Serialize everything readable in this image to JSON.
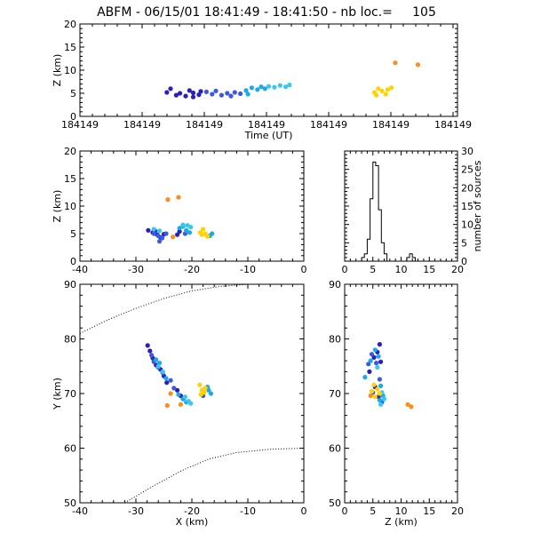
{
  "header": {
    "title": "ABFM - 06/15/01 18:41:49 - 18:41:50 - nb loc.=     105"
  },
  "colors": {
    "navy": "#2b1fb8",
    "blue": "#3b5bdc",
    "sky": "#1ea8e8",
    "cyan": "#36c8f0",
    "yellow": "#ffd200",
    "orange": "#ff8c1a"
  },
  "chart_data": [
    {
      "id": "time-z",
      "type": "scatter",
      "xlabel": "Time (UT)",
      "ylabel": "Z (km)",
      "ylim": [
        0,
        20
      ],
      "xlim": [
        0,
        1
      ],
      "x_tick_labels": [
        "184149",
        "184149",
        "184149",
        "184149",
        "184149",
        "184149",
        "184149"
      ],
      "y_ticks": [
        0,
        5,
        10,
        15,
        20
      ],
      "series": [
        {
          "color": "navy",
          "points": [
            [
              0.23,
              5.2
            ],
            [
              0.24,
              6.0
            ],
            [
              0.255,
              4.6
            ],
            [
              0.265,
              5.0
            ],
            [
              0.28,
              4.4
            ],
            [
              0.29,
              5.6
            ],
            [
              0.3,
              5.1
            ],
            [
              0.315,
              4.7
            ],
            [
              0.32,
              5.4
            ],
            [
              0.3,
              4.2
            ]
          ]
        },
        {
          "color": "blue",
          "points": [
            [
              0.335,
              5.3
            ],
            [
              0.35,
              4.8
            ],
            [
              0.36,
              5.5
            ],
            [
              0.375,
              4.6
            ],
            [
              0.39,
              5.0
            ],
            [
              0.4,
              4.4
            ],
            [
              0.41,
              5.2
            ],
            [
              0.425,
              4.9
            ]
          ]
        },
        {
          "color": "sky",
          "points": [
            [
              0.44,
              5.6
            ],
            [
              0.455,
              6.2
            ],
            [
              0.47,
              5.8
            ],
            [
              0.48,
              6.4
            ],
            [
              0.49,
              6.0
            ],
            [
              0.445,
              4.8
            ]
          ]
        },
        {
          "color": "cyan",
          "points": [
            [
              0.5,
              6.5
            ],
            [
              0.515,
              6.3
            ],
            [
              0.53,
              6.7
            ],
            [
              0.545,
              6.4
            ],
            [
              0.555,
              6.8
            ]
          ]
        },
        {
          "color": "yellow",
          "points": [
            [
              0.78,
              5.2
            ],
            [
              0.79,
              6.0
            ],
            [
              0.8,
              5.5
            ],
            [
              0.81,
              4.8
            ],
            [
              0.815,
              5.8
            ],
            [
              0.825,
              6.2
            ],
            [
              0.785,
              4.6
            ]
          ]
        },
        {
          "color": "orange",
          "points": [
            [
              0.835,
              11.6
            ],
            [
              0.895,
              11.2
            ]
          ]
        }
      ]
    },
    {
      "id": "x-z",
      "type": "scatter",
      "xlabel": "",
      "ylabel": "Z (km)",
      "xlim": [
        -40,
        0
      ],
      "ylim": [
        0,
        20
      ],
      "x_ticks": [
        -40,
        -30,
        -20,
        -10,
        0
      ],
      "y_ticks": [
        0,
        5,
        10,
        15,
        20
      ],
      "series": [
        {
          "color": "navy",
          "points": [
            [
              -27.8,
              5.6
            ],
            [
              -27,
              5.2
            ],
            [
              -26.2,
              4.8
            ],
            [
              -25.6,
              4.3
            ],
            [
              -25,
              4.9
            ],
            [
              -26.6,
              5.5
            ],
            [
              -22.6,
              4.8
            ],
            [
              -22.2,
              5.4
            ]
          ]
        },
        {
          "color": "blue",
          "points": [
            [
              -26.8,
              5.0
            ],
            [
              -26,
              4.6
            ],
            [
              -25.3,
              4.2
            ],
            [
              -24.6,
              5.0
            ],
            [
              -25.8,
              3.6
            ],
            [
              -21.2,
              5.0
            ]
          ]
        },
        {
          "color": "sky",
          "points": [
            [
              -22.2,
              6.0
            ],
            [
              -21.6,
              6.3
            ],
            [
              -21,
              5.6
            ],
            [
              -20.4,
              5.2
            ],
            [
              -16.8,
              4.6
            ],
            [
              -16.4,
              5.0
            ]
          ]
        },
        {
          "color": "cyan",
          "points": [
            [
              -21.6,
              6.6
            ],
            [
              -20.8,
              6.5
            ],
            [
              -20.2,
              6.2
            ],
            [
              -25.8,
              5.5
            ],
            [
              -26.8,
              5.8
            ]
          ]
        },
        {
          "color": "yellow",
          "points": [
            [
              -18.5,
              5.2
            ],
            [
              -18,
              5.8
            ],
            [
              -17.6,
              5.0
            ],
            [
              -17.2,
              4.5
            ],
            [
              -18.2,
              4.8
            ]
          ]
        },
        {
          "color": "orange",
          "points": [
            [
              -24.3,
              11.2
            ],
            [
              -22.4,
              11.6
            ],
            [
              -23.4,
              4.4
            ]
          ]
        }
      ]
    },
    {
      "id": "histogram",
      "type": "bar",
      "xlabel": "",
      "ylabel": "number of sources",
      "xlim": [
        0,
        20
      ],
      "ylim": [
        0,
        30
      ],
      "x_ticks": [
        0,
        5,
        10,
        15,
        20
      ],
      "y_ticks": [
        0,
        5,
        10,
        15,
        20,
        25,
        30
      ],
      "bin_edges": [
        0,
        0.5,
        1,
        1.5,
        2,
        2.5,
        3,
        3.5,
        4,
        4.5,
        5,
        5.5,
        6,
        6.5,
        7,
        7.5,
        8,
        8.5,
        9,
        9.5,
        10,
        10.5,
        11,
        11.5,
        12,
        12.5,
        13,
        13.5,
        14,
        14.5,
        15,
        15.5,
        16,
        16.5,
        17,
        17.5,
        18,
        18.5,
        19,
        19.5,
        20
      ],
      "values": [
        0,
        0,
        0,
        0,
        0,
        0,
        1,
        2,
        6,
        17,
        27,
        26,
        14,
        5,
        2,
        0,
        0,
        0,
        0,
        0,
        0,
        0,
        1,
        2,
        1,
        0,
        0,
        0,
        0,
        0,
        0,
        0,
        0,
        0,
        0,
        0,
        0,
        0,
        0,
        0
      ]
    },
    {
      "id": "x-y",
      "type": "scatter",
      "xlabel": "X (km)",
      "ylabel": "Y (km)",
      "xlim": [
        -40,
        0
      ],
      "ylim": [
        50,
        90
      ],
      "x_ticks": [
        -40,
        -30,
        -20,
        -10,
        0
      ],
      "y_ticks": [
        50,
        60,
        70,
        80,
        90
      ],
      "series": [
        {
          "color": "navy",
          "points": [
            [
              -27.9,
              78.8
            ],
            [
              -27.5,
              77.8
            ],
            [
              -27,
              76.5
            ],
            [
              -26.4,
              75.2
            ],
            [
              -25.6,
              74.4
            ],
            [
              -25,
              73.2
            ],
            [
              -24.5,
              72.0
            ],
            [
              -22.6,
              70.6
            ],
            [
              -22,
              69.6
            ]
          ]
        },
        {
          "color": "blue",
          "points": [
            [
              -27.2,
              77.0
            ],
            [
              -26.8,
              75.8
            ],
            [
              -26,
              74.8
            ],
            [
              -25.2,
              73.8
            ],
            [
              -23.8,
              72.4
            ],
            [
              -23.2,
              71.0
            ],
            [
              -21.4,
              69.2
            ],
            [
              -18,
              69.6
            ]
          ]
        },
        {
          "color": "sky",
          "points": [
            [
              -26.4,
              76.2
            ],
            [
              -25.8,
              75.6
            ],
            [
              -24.6,
              72.8
            ],
            [
              -22.4,
              69.8
            ],
            [
              -21.6,
              69.0
            ],
            [
              -21,
              68.4
            ],
            [
              -17,
              70.6
            ],
            [
              -16.6,
              70.0
            ],
            [
              -17.2,
              71.2
            ]
          ]
        },
        {
          "color": "cyan",
          "points": [
            [
              -26,
              75.0
            ],
            [
              -25.2,
              74.0
            ],
            [
              -21.2,
              69.4
            ],
            [
              -20.6,
              68.6
            ],
            [
              -20.2,
              68.2
            ]
          ]
        },
        {
          "color": "yellow",
          "points": [
            [
              -18.6,
              71.6
            ],
            [
              -18.2,
              70.6
            ],
            [
              -17.8,
              70.2
            ],
            [
              -18.4,
              69.8
            ],
            [
              -17.6,
              71.0
            ]
          ]
        },
        {
          "color": "orange",
          "points": [
            [
              -24.4,
              67.8
            ],
            [
              -22.0,
              68.0
            ],
            [
              -23.8,
              70.0
            ]
          ]
        }
      ],
      "curves": [
        {
          "style": "dotted",
          "points": [
            [
              -40,
              81
            ],
            [
              -35,
              83.5
            ],
            [
              -30,
              85.6
            ],
            [
              -25,
              87.4
            ],
            [
              -20,
              88.8
            ],
            [
              -15,
              89.6
            ],
            [
              -10,
              90
            ]
          ]
        },
        {
          "style": "dotted",
          "points": [
            [
              -32,
              50
            ],
            [
              -27,
              53
            ],
            [
              -22,
              55.8
            ],
            [
              -17,
              58
            ],
            [
              -12,
              59.2
            ],
            [
              -6,
              59.8
            ],
            [
              0,
              60
            ]
          ]
        }
      ]
    },
    {
      "id": "z-y",
      "type": "scatter",
      "xlabel": "Z (km)",
      "ylabel": "",
      "xlim": [
        0,
        20
      ],
      "ylim": [
        50,
        90
      ],
      "x_ticks": [
        0,
        5,
        10,
        15,
        20
      ],
      "y_ticks": [
        50,
        60,
        70,
        80,
        90
      ],
      "series": [
        {
          "color": "navy",
          "points": [
            [
              6.2,
              79.0
            ],
            [
              5.8,
              77.6
            ],
            [
              5.2,
              76.6
            ],
            [
              6.4,
              75.8
            ],
            [
              4.4,
              74.0
            ],
            [
              5.4,
              71.2
            ],
            [
              6.0,
              69.4
            ]
          ]
        },
        {
          "color": "blue",
          "points": [
            [
              4.8,
              77.2
            ],
            [
              5.6,
              75.6
            ],
            [
              4.2,
              75.4
            ],
            [
              6.2,
              72.6
            ],
            [
              5.0,
              70.2
            ],
            [
              6.6,
              68.4
            ]
          ]
        },
        {
          "color": "sky",
          "points": [
            [
              5.4,
              78.0
            ],
            [
              6.0,
              76.8
            ],
            [
              4.6,
              76.0
            ],
            [
              3.6,
              73.0
            ],
            [
              6.4,
              71.4
            ],
            [
              6.8,
              69.6
            ],
            [
              6.2,
              68.8
            ]
          ]
        },
        {
          "color": "cyan",
          "points": [
            [
              5.8,
              74.8
            ],
            [
              6.6,
              70.2
            ],
            [
              7.0,
              69.0
            ],
            [
              6.4,
              68.0
            ]
          ]
        },
        {
          "color": "yellow",
          "points": [
            [
              5.2,
              71.6
            ],
            [
              5.8,
              70.8
            ],
            [
              6.2,
              70.0
            ],
            [
              5.4,
              69.4
            ],
            [
              4.8,
              70.4
            ]
          ]
        },
        {
          "color": "orange",
          "points": [
            [
              11.2,
              68.0
            ],
            [
              11.8,
              67.6
            ],
            [
              4.6,
              69.6
            ]
          ]
        }
      ]
    }
  ]
}
